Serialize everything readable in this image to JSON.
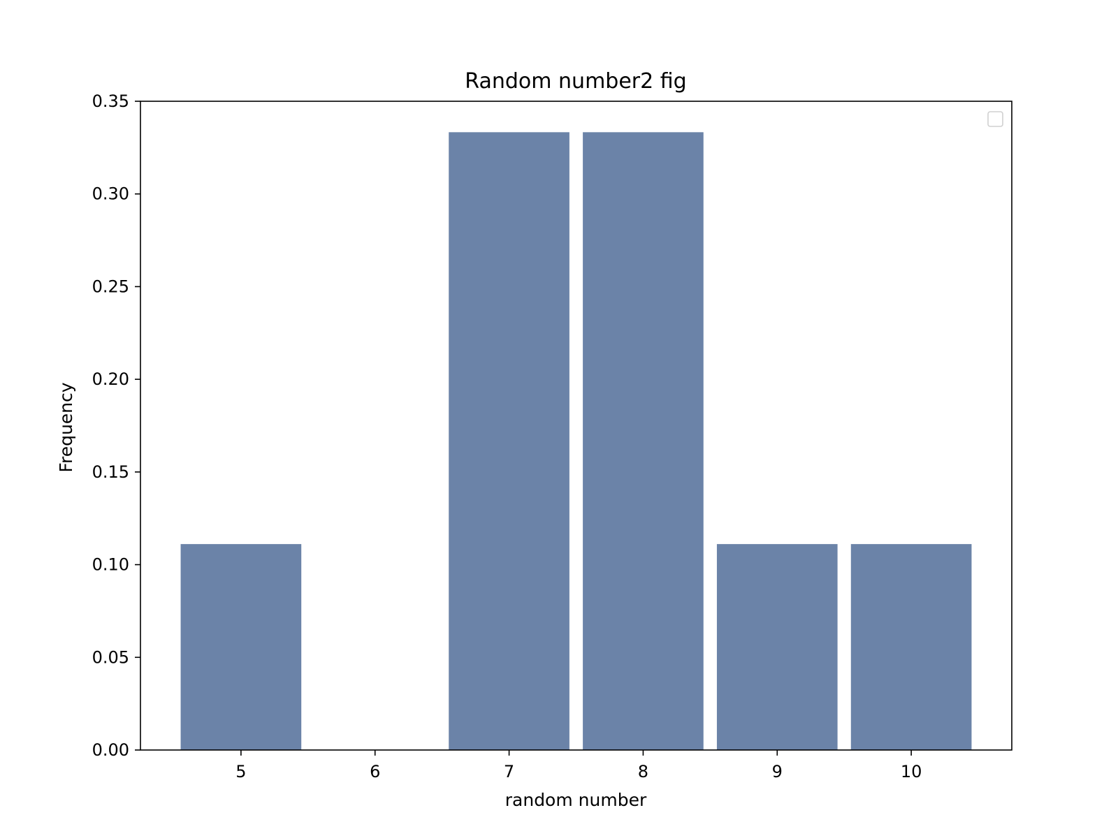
{
  "chart_data": {
    "type": "bar",
    "title": "Random number2 fig",
    "xlabel": "random number",
    "ylabel": "Frequency",
    "categories": [
      5,
      6,
      7,
      8,
      9,
      10
    ],
    "values": [
      0.1111,
      0.0,
      0.3333,
      0.3333,
      0.1111,
      0.1111
    ],
    "xlim": [
      4.25,
      10.75
    ],
    "ylim": [
      0,
      0.35
    ],
    "yticks": [
      "0.00",
      "0.05",
      "0.10",
      "0.15",
      "0.20",
      "0.25",
      "0.30",
      "0.35"
    ],
    "xticks": [
      "5",
      "6",
      "7",
      "8",
      "9",
      "10"
    ],
    "bar_width": 0.9,
    "bar_color": "#6b83a8",
    "legend": {
      "position": "top-right",
      "entries": []
    },
    "grid": false
  }
}
